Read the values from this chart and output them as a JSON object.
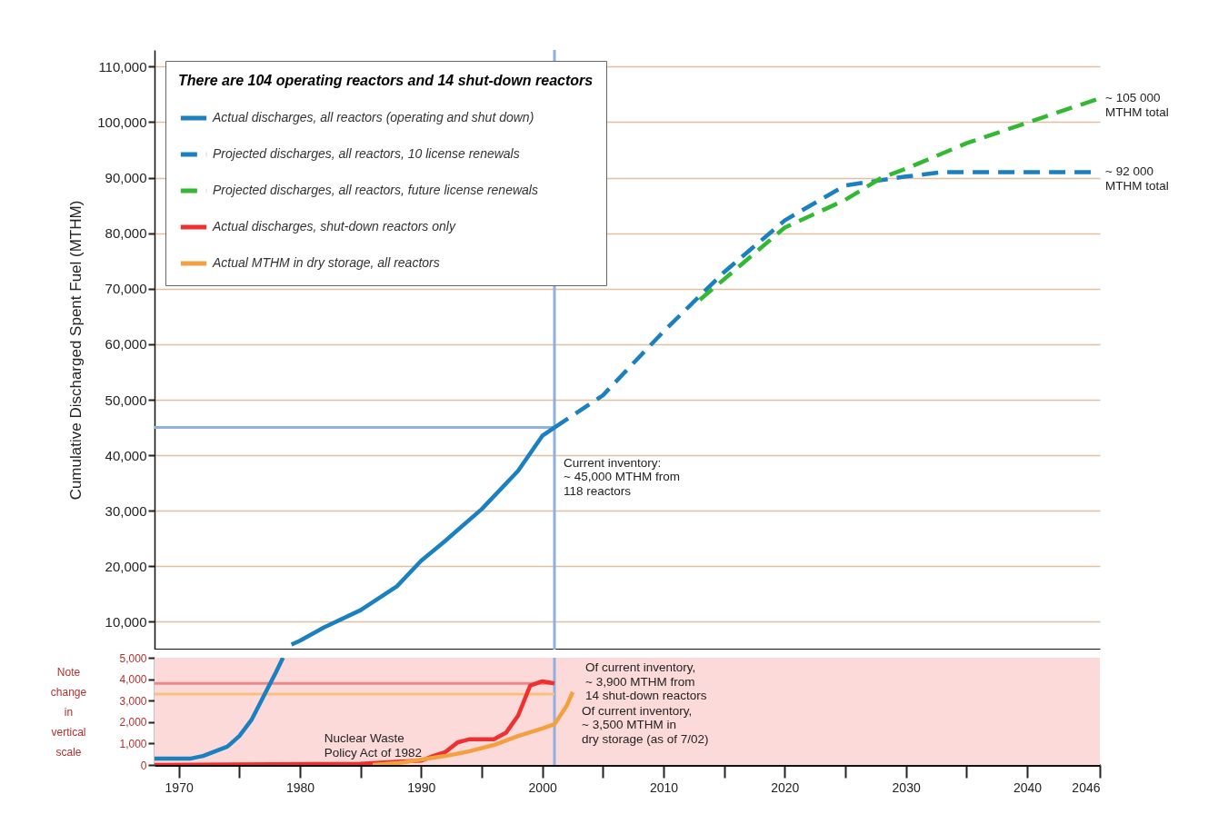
{
  "chart_data": [
    {
      "type": "line",
      "ylabel": "Cumulative Discharged Spent Fuel (MTHM)",
      "legend_title": "There are 104 operating reactors and 14 shut-down reactors",
      "legend": "top left",
      "grid": "y",
      "tick_labels": "y",
      "xlim": [
        1968,
        2046
      ],
      "ylim": [
        5000,
        113000
      ],
      "yticks": [
        {
          "value": 10000,
          "label": "10,000"
        },
        {
          "value": 20000,
          "label": "20,000"
        },
        {
          "value": 30000,
          "label": "30,000"
        },
        {
          "value": 40000,
          "label": "40,000"
        },
        {
          "value": 50000,
          "label": "50,000"
        },
        {
          "value": 60000,
          "label": "60,000"
        },
        {
          "value": 70000,
          "label": "70,000"
        },
        {
          "value": 80000,
          "label": "80,000"
        },
        {
          "value": 90000,
          "label": "90,000"
        },
        {
          "value": 100000,
          "label": "100,000"
        },
        {
          "value": 110000,
          "label": "110,000"
        }
      ],
      "series": [
        {
          "name": "Actual discharges, all reactors (operating and shut down)",
          "color": "#1a80bf",
          "line_style": "solid",
          "x": [
            1979.3,
            1980,
            1982,
            1985,
            1988,
            1990,
            1992,
            1995,
            1998,
            2000,
            2001
          ],
          "values": [
            5900,
            6600,
            9000,
            12100,
            16400,
            21000,
            24600,
            30300,
            37200,
            43500,
            45000
          ]
        },
        {
          "name": "Projected discharges, all reactors, 10 license renewals",
          "color": "#1a80bf",
          "line_style": "dashed",
          "x": [
            2001,
            2005,
            2010,
            2015,
            2020,
            2025,
            2030,
            2033,
            2046
          ],
          "values": [
            45000,
            50800,
            62300,
            73000,
            82300,
            88600,
            90200,
            91000,
            91000
          ]
        },
        {
          "name": "Projected discharges, all reactors, future license renewals",
          "color": "#33b833",
          "line_style": "dashed",
          "x": [
            2013,
            2020,
            2025,
            2028,
            2030,
            2035,
            2040,
            2046
          ],
          "values": [
            68000,
            81000,
            86000,
            90000,
            91600,
            96200,
            99900,
            104300
          ]
        }
      ],
      "ref_lines": [
        {
          "axis": "x",
          "value": 2001,
          "color": "#8fb0e0"
        },
        {
          "axis": "y",
          "value": 45000,
          "color": "#8fb0e0"
        }
      ],
      "annotations": [
        {
          "text": "~ 105 000\nMTHM total",
          "x": 2046,
          "y": 104300
        },
        {
          "text": "~ 92 000\nMTHM total",
          "x": 2046,
          "y": 91000
        },
        {
          "text": "Current inventory:\n~ 45,000 MTHM from\n118 reactors",
          "x": 2001,
          "y": 45000
        }
      ]
    },
    {
      "type": "line",
      "ylabel": "Note change in vertical scale",
      "xlim": [
        1968,
        2046
      ],
      "xticks": [
        1970,
        {
          "value": 1975,
          "label": null
        },
        1980,
        {
          "value": 1985,
          "label": null
        },
        1990,
        {
          "value": 1995,
          "label": null
        },
        2000,
        {
          "value": 2005,
          "label": null
        },
        2010,
        {
          "value": 2015,
          "label": null
        },
        2020,
        {
          "value": 2025,
          "label": null
        },
        2030,
        {
          "value": 2035,
          "label": null
        },
        2040,
        2046
      ],
      "ylim": [
        0,
        5000
      ],
      "yticks": [
        0,
        {
          "value": 1000,
          "label": "1,000"
        },
        {
          "value": 2000,
          "label": "2,000"
        },
        {
          "value": 3000,
          "label": "3,000"
        },
        {
          "value": 4000,
          "label": "4,000"
        },
        {
          "value": 5000,
          "label": "5,000"
        }
      ],
      "series": [
        {
          "color": "#1a80bf",
          "line_style": "solid",
          "x": [
            1968,
            1971,
            1972,
            1974,
            1975,
            1976,
            1977,
            1978,
            1978.6
          ],
          "values": [
            300,
            300,
            420,
            850,
            1350,
            2100,
            3200,
            4300,
            5000
          ]
        },
        {
          "name": "Actual discharges, shut-down reactors only",
          "color": "#ee3030",
          "line_style": "solid",
          "x": [
            1968,
            1985,
            1988,
            1990,
            1991,
            1992,
            1993,
            1994,
            1996,
            1997,
            1998,
            1999,
            2000,
            2001
          ],
          "values": [
            0,
            50,
            150,
            200,
            420,
            600,
            1050,
            1200,
            1200,
            1500,
            2300,
            3700,
            3900,
            3800
          ]
        },
        {
          "name": "Actual MTHM in dry storage, all reactors",
          "color": "#f5a040",
          "line_style": "solid",
          "x": [
            1986,
            1988,
            1990,
            1992,
            1994,
            1996,
            1998,
            2000,
            2001,
            2002,
            2002.5
          ],
          "values": [
            0,
            80,
            250,
            420,
            640,
            930,
            1350,
            1700,
            1900,
            2750,
            3400
          ]
        }
      ],
      "bands": [
        {
          "axis": "y",
          "from": 0,
          "to": 5000,
          "color": "#fcdada"
        }
      ],
      "ref_lines": [
        {
          "axis": "x",
          "value": 2001,
          "color": "#8fb0e0"
        },
        {
          "axis": "y",
          "value": 3800,
          "color": "#ee8888"
        },
        {
          "axis": "y",
          "value": 3300,
          "color": "#f8c080"
        }
      ],
      "annotations": [
        {
          "text": "Nuclear Waste\nPolicy Act of 1982",
          "x": 1982,
          "y": 0
        },
        {
          "text": "Of current inventory,\n~ 3,900 MTHM from\n14 shut-down reactors",
          "x": 2001,
          "y": 3800
        },
        {
          "text": "Of current inventory,\n~ 3,500 MTHM in\ndry storage (as of 7/02)",
          "x": 2002.5,
          "y": 3400
        }
      ]
    }
  ]
}
